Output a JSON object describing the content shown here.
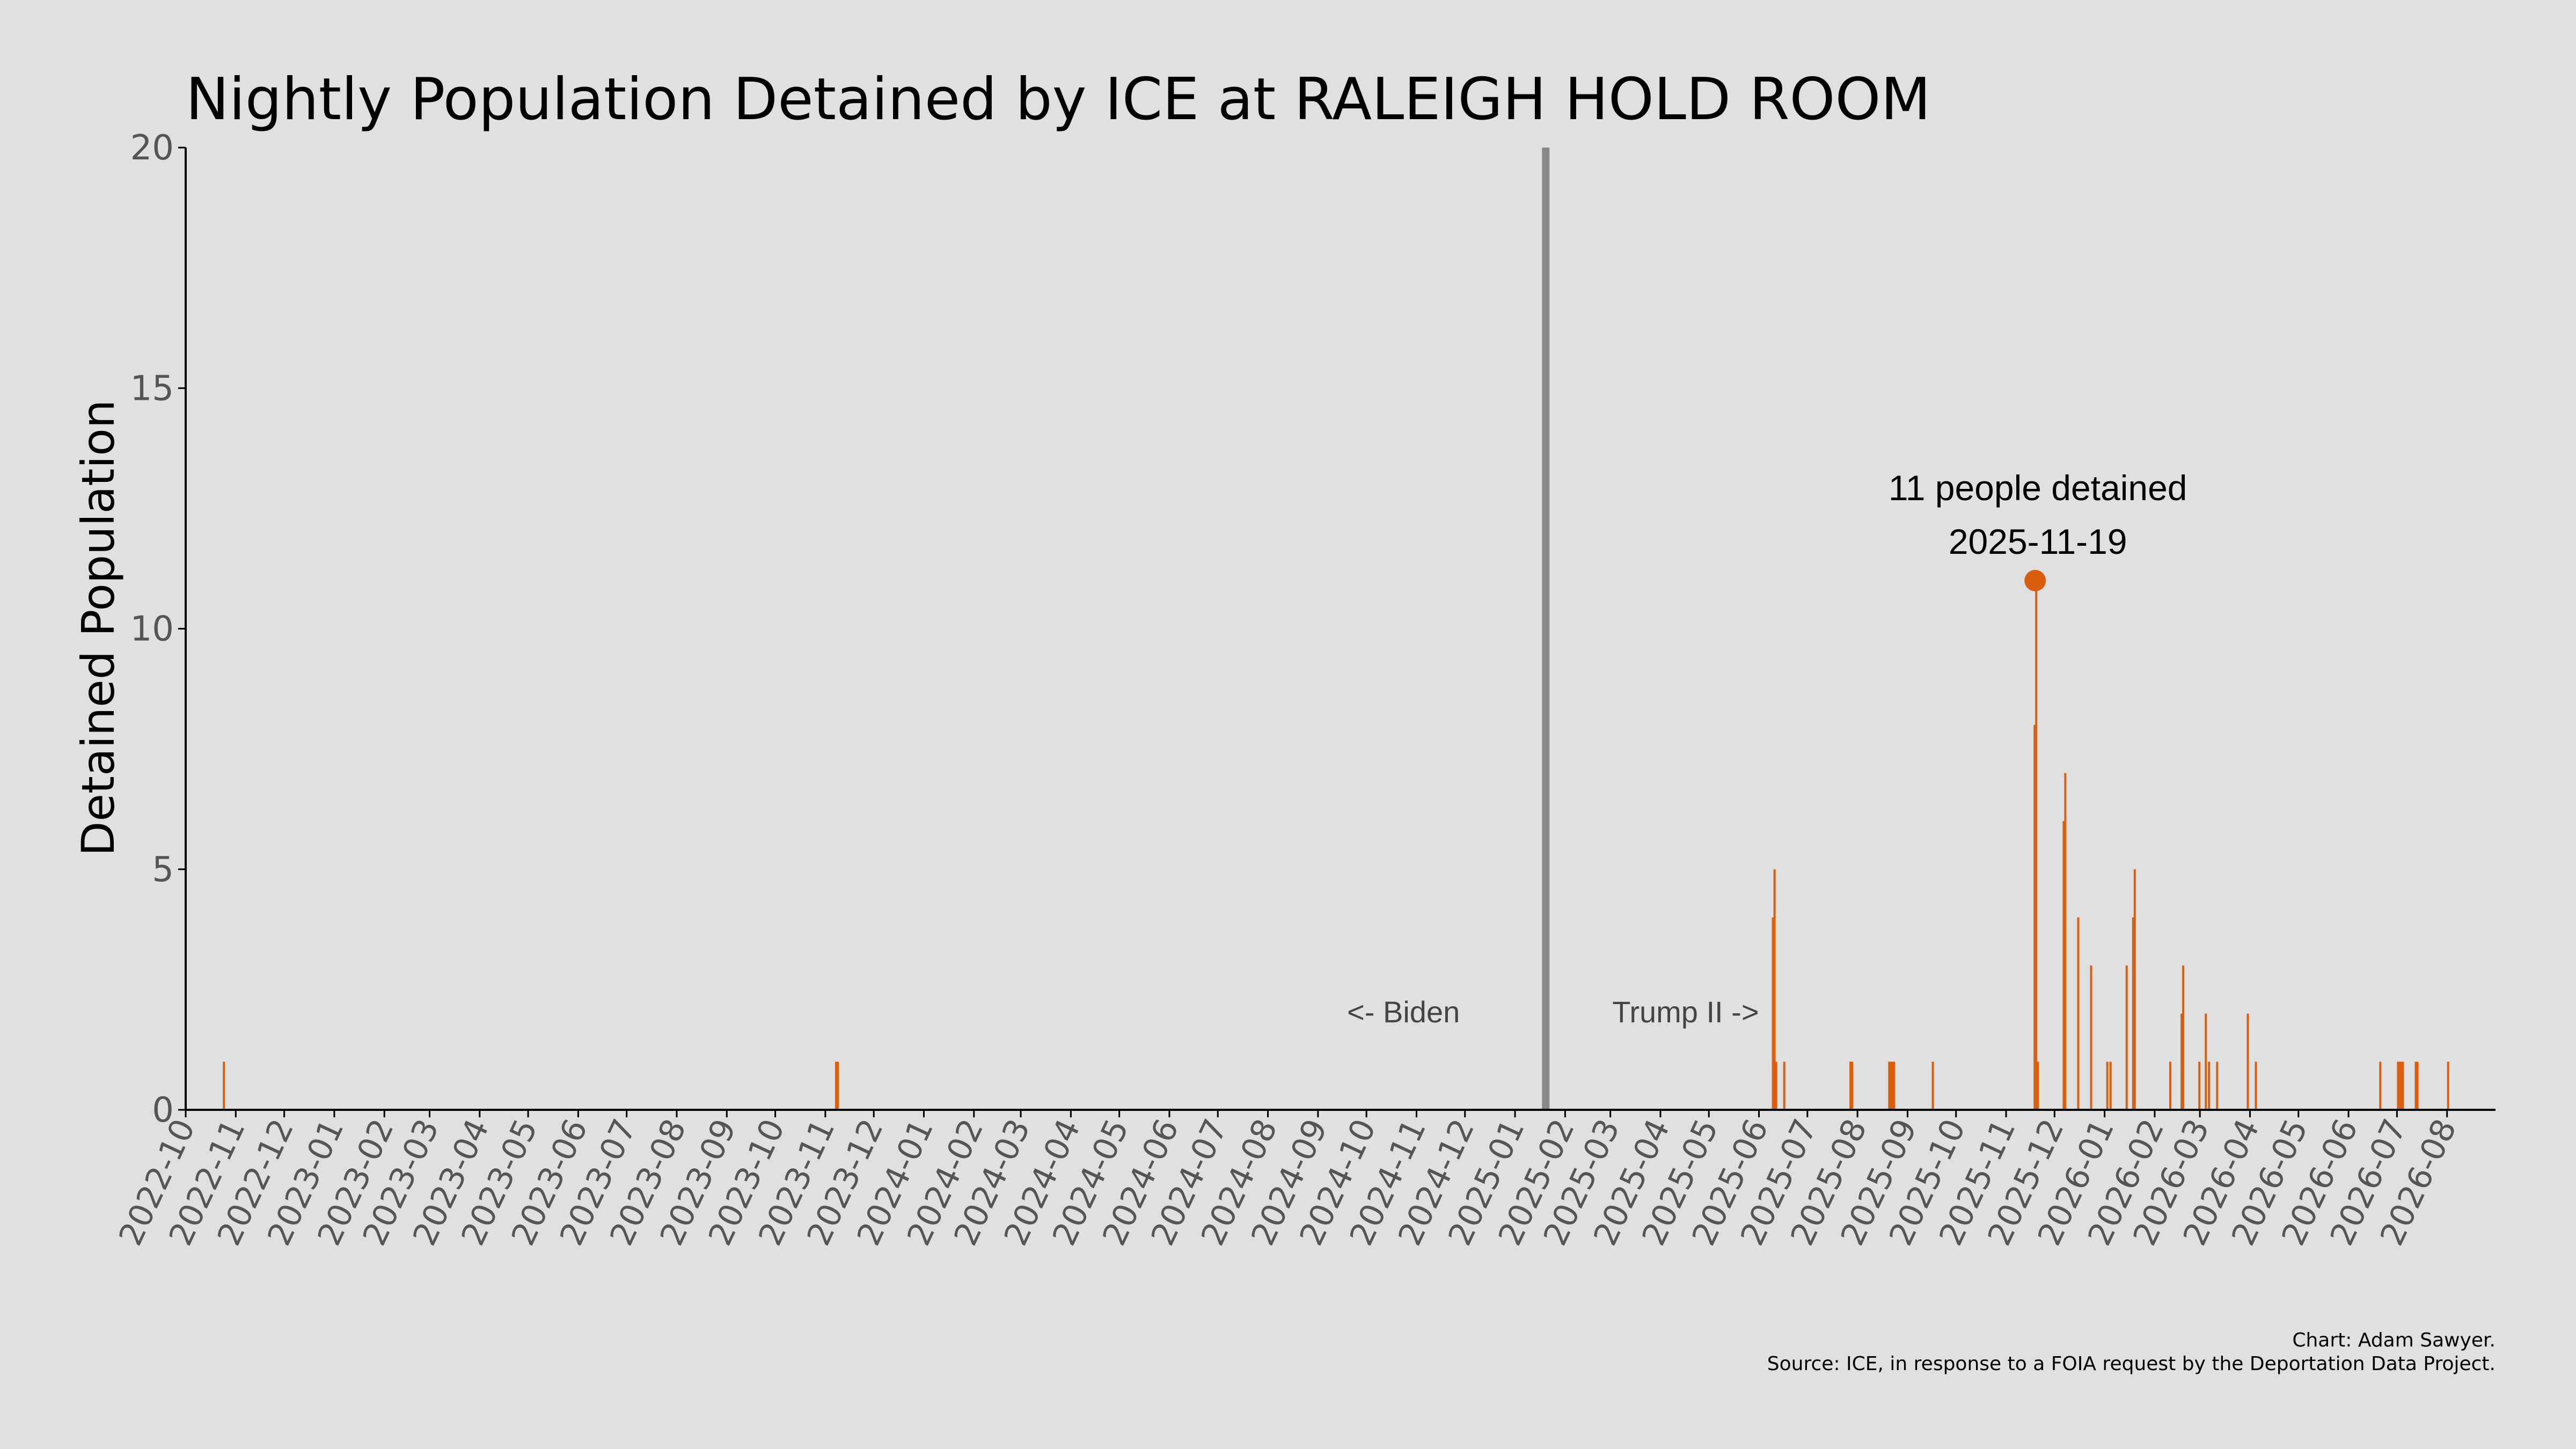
{
  "chart_data": {
    "type": "bar",
    "title": "Nightly Population Detained by ICE at RALEIGH HOLD ROOM",
    "xlabel": "",
    "ylabel": "Detained Population",
    "xlim": [
      "2022-10-01",
      "2026-08-31"
    ],
    "ylim": [
      0,
      20
    ],
    "y_ticks": [
      0,
      5,
      10,
      15,
      20
    ],
    "x_tick_labels": [
      "2022-10",
      "2022-11",
      "2022-12",
      "2023-01",
      "2023-02",
      "2023-03",
      "2023-04",
      "2023-05",
      "2023-06",
      "2023-07",
      "2023-08",
      "2023-09",
      "2023-10",
      "2023-11",
      "2023-12",
      "2024-01",
      "2024-02",
      "2024-03",
      "2024-04",
      "2024-05",
      "2024-06",
      "2024-07",
      "2024-08",
      "2024-09",
      "2024-10",
      "2024-11",
      "2024-12",
      "2025-01",
      "2025-02",
      "2025-03",
      "2025-04",
      "2025-05",
      "2025-06",
      "2025-07",
      "2025-08",
      "2025-09",
      "2025-10",
      "2025-11",
      "2025-12",
      "2026-01",
      "2026-02",
      "2026-03",
      "2026-04",
      "2026-05",
      "2026-06",
      "2026-07",
      "2026-08"
    ],
    "grid": false,
    "bar_color": "#d95f0e",
    "series": [
      {
        "dates": [
          "2022-10-24",
          "2023-11-07",
          "2023-11-08",
          "2025-06-09",
          "2025-06-10",
          "2025-06-11",
          "2025-06-16",
          "2025-07-27",
          "2025-07-28",
          "2025-08-20",
          "2025-08-21",
          "2025-08-22",
          "2025-08-23",
          "2025-09-16",
          "2025-11-18",
          "2025-11-19",
          "2025-11-20",
          "2025-12-06",
          "2025-12-07",
          "2025-12-15",
          "2025-12-23",
          "2026-01-02",
          "2026-01-04",
          "2026-01-14",
          "2026-01-18",
          "2026-01-19",
          "2026-02-10",
          "2026-02-17",
          "2026-02-18",
          "2026-02-28",
          "2026-03-04",
          "2026-03-06",
          "2026-03-11",
          "2026-03-30",
          "2026-04-04",
          "2026-06-20",
          "2026-07-01",
          "2026-07-02",
          "2026-07-03",
          "2026-07-04",
          "2026-07-12",
          "2026-07-13",
          "2026-08-01"
        ],
        "values": [
          1,
          1,
          1,
          4,
          5,
          1,
          1,
          1,
          1,
          1,
          1,
          1,
          1,
          1,
          8,
          11,
          1,
          6,
          7,
          4,
          3,
          1,
          1,
          3,
          4,
          5,
          1,
          2,
          3,
          1,
          2,
          1,
          1,
          2,
          1,
          1,
          1,
          1,
          1,
          1,
          1,
          1,
          1
        ]
      }
    ],
    "inauguration_line": {
      "date": "2025-01-20",
      "color": "#888888"
    },
    "era_labels": {
      "left": "<- Biden",
      "right": "Trump II ->"
    },
    "annotation": {
      "text": "11 people detained",
      "date_label": "2025-11-19",
      "date": "2025-11-19",
      "value": 11,
      "color": "#d95f0e"
    },
    "credit": "Chart: Adam Sawyer.",
    "source": "Source: ICE, in response to a FOIA request by the Deportation Data Project."
  }
}
